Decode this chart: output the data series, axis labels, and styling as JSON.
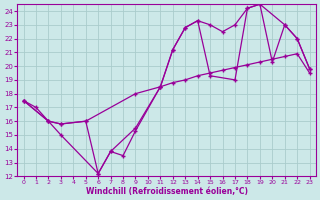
{
  "background_color": "#cce8e8",
  "grid_color": "#aacccc",
  "line_color": "#990099",
  "xlabel": "Windchill (Refroidissement éolien,°C)",
  "xlim": [
    -0.5,
    23.5
  ],
  "ylim": [
    12,
    24.5
  ],
  "yticks": [
    12,
    13,
    14,
    15,
    16,
    17,
    18,
    19,
    20,
    21,
    22,
    23,
    24
  ],
  "xticks": [
    0,
    1,
    2,
    3,
    4,
    5,
    6,
    7,
    8,
    9,
    10,
    11,
    12,
    13,
    14,
    15,
    16,
    17,
    18,
    19,
    20,
    21,
    22,
    23
  ],
  "line1_x": [
    0,
    1,
    2,
    3,
    5,
    9,
    11,
    12,
    13,
    14,
    15,
    16,
    17,
    18,
    19,
    20,
    21,
    22,
    23
  ],
  "line1_y": [
    17.5,
    17.0,
    16.0,
    15.8,
    16.0,
    18.0,
    18.5,
    18.8,
    19.0,
    19.3,
    19.5,
    19.7,
    19.9,
    20.1,
    20.3,
    20.5,
    20.7,
    20.9,
    19.5
  ],
  "line2_x": [
    0,
    2,
    3,
    6,
    7,
    8,
    9,
    11,
    12,
    13,
    14,
    15,
    17,
    18,
    19,
    21,
    22,
    23
  ],
  "line2_y": [
    17.5,
    16.0,
    15.0,
    12.2,
    13.8,
    13.5,
    15.3,
    18.5,
    21.2,
    22.8,
    23.3,
    19.3,
    19.0,
    24.2,
    24.5,
    23.0,
    22.0,
    19.8
  ],
  "line3_x": [
    0,
    2,
    3,
    5,
    6,
    7,
    9,
    11,
    12,
    13,
    14,
    15,
    16,
    17,
    18,
    19,
    20,
    21,
    22,
    23
  ],
  "line3_y": [
    17.5,
    16.0,
    15.8,
    16.0,
    12.2,
    13.8,
    15.5,
    18.5,
    21.2,
    22.8,
    23.3,
    23.0,
    22.5,
    23.0,
    24.2,
    24.5,
    20.3,
    23.0,
    22.0,
    19.8
  ]
}
